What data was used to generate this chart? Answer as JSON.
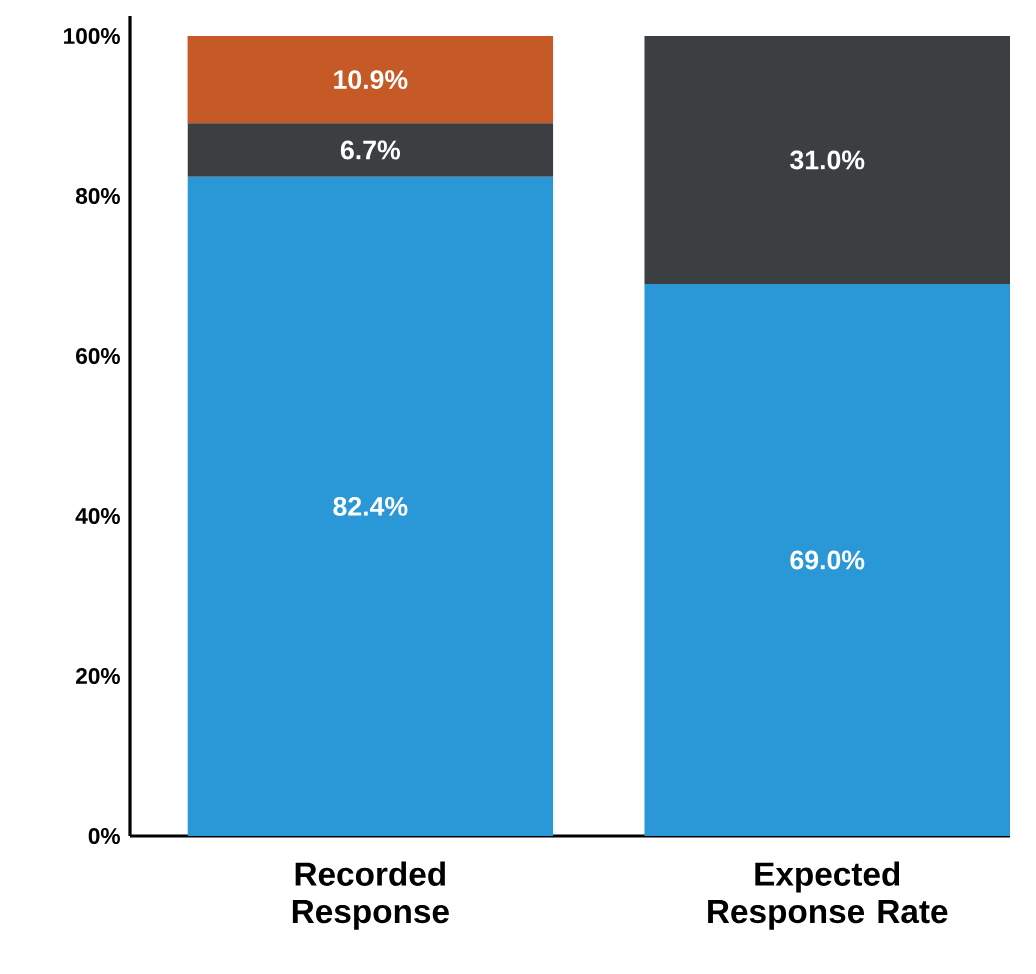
{
  "chart_data": {
    "type": "bar",
    "stacked": true,
    "categories": [
      "Recorded Response",
      "Expected Response Rate"
    ],
    "series": [
      {
        "color": "#2a98d6",
        "values": [
          82.4,
          69.0
        ],
        "value_labels": [
          "82.4%",
          "69.0%"
        ]
      },
      {
        "color": "#3c3f41",
        "values": [
          6.7,
          31.0
        ],
        "value_labels": [
          "6.7%",
          "31.0%"
        ]
      },
      {
        "color": "#c65a27",
        "values": [
          10.9,
          null
        ],
        "value_labels": [
          "10.9%",
          null
        ]
      }
    ],
    "ylim": [
      0,
      102.5
    ],
    "yticks": [
      {
        "value": 0,
        "label": "0%"
      },
      {
        "value": 20,
        "label": "20%"
      },
      {
        "value": 40,
        "label": "40%"
      },
      {
        "value": 60,
        "label": "60%"
      },
      {
        "value": 80,
        "label": "80%"
      },
      {
        "value": 100,
        "label": "100%"
      }
    ],
    "grid": false
  }
}
